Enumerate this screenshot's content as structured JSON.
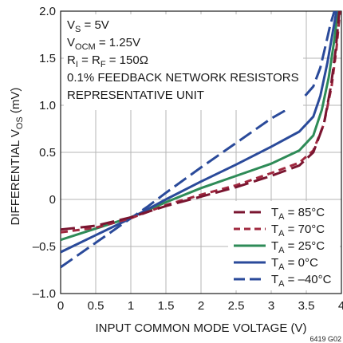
{
  "chart_data": {
    "type": "line",
    "xlabel": "INPUT COMMON MODE VOLTAGE (V)",
    "ylabel_main": "DIFFERENTIAL V",
    "ylabel_sub": "OS",
    "ylabel_unit": " (mV)",
    "xlim": [
      0,
      4
    ],
    "ylim": [
      -1.0,
      2.0
    ],
    "x_ticks": [
      0,
      0.5,
      1,
      1.5,
      2,
      2.5,
      3,
      3.5,
      4
    ],
    "x_tick_labels": [
      "0",
      "0.5",
      "1",
      "1.5",
      "2",
      "2.5",
      "3",
      "3.5",
      "4"
    ],
    "y_ticks": [
      -1.0,
      -0.5,
      0,
      0.5,
      1.0,
      1.5,
      2.0
    ],
    "y_tick_labels": [
      "–1.0",
      "–0.5",
      "0",
      "0.5",
      "1.0",
      "1.5",
      "2.0"
    ],
    "grid": true,
    "legend_position": "bottom-right",
    "annotations": [
      {
        "main": "V",
        "sub": "S",
        "rest": " = 5V"
      },
      {
        "main": "V",
        "sub": "OCM",
        "rest": " = 1.25V"
      },
      {
        "main": "R",
        "sub": "I",
        "rest": " = R",
        "sub2": "F",
        "rest2": " = 150Ω"
      },
      {
        "main": "0.1% FEEDBACK NETWORK RESISTORS"
      },
      {
        "main": "REPRESENTATIVE UNIT"
      }
    ],
    "figure_id": "6419 G02",
    "series": [
      {
        "name_main": "T",
        "name_sub": "A",
        "name_rest": " = 85°C",
        "color": "#7a1530",
        "dash": "long-dash",
        "x": [
          0,
          0.5,
          1.0,
          1.25,
          1.5,
          2.0,
          2.5,
          3.0,
          3.4,
          3.6,
          3.75,
          3.85,
          3.92,
          3.97
        ],
        "y": [
          -0.32,
          -0.28,
          -0.19,
          -0.13,
          -0.07,
          0.03,
          0.13,
          0.25,
          0.36,
          0.5,
          0.8,
          1.2,
          1.6,
          2.0
        ]
      },
      {
        "name_main": "T",
        "name_sub": "A",
        "name_rest": " = 70°C",
        "color": "#a0283f",
        "dash": "short-dash",
        "x": [
          0,
          0.5,
          1.0,
          1.25,
          1.5,
          2.0,
          2.5,
          3.0,
          3.4,
          3.6,
          3.75,
          3.86,
          3.93,
          3.98
        ],
        "y": [
          -0.35,
          -0.3,
          -0.2,
          -0.13,
          -0.06,
          0.05,
          0.15,
          0.28,
          0.39,
          0.52,
          0.8,
          1.2,
          1.6,
          2.0
        ]
      },
      {
        "name_main": "T",
        "name_sub": "A",
        "name_rest": " = 25°C",
        "color": "#2e8b57",
        "dash": "solid",
        "x": [
          0,
          0.5,
          1.0,
          1.25,
          1.5,
          2.0,
          2.5,
          3.0,
          3.4,
          3.6,
          3.72,
          3.82,
          3.9,
          3.95
        ],
        "y": [
          -0.43,
          -0.31,
          -0.19,
          -0.11,
          -0.03,
          0.12,
          0.25,
          0.38,
          0.52,
          0.68,
          0.95,
          1.3,
          1.7,
          2.0
        ]
      },
      {
        "name_main": "T",
        "name_sub": "A",
        "name_rest": " = 0°C",
        "color": "#2a4a9a",
        "dash": "solid",
        "x": [
          0,
          0.5,
          1.0,
          1.25,
          1.5,
          2.0,
          2.5,
          3.0,
          3.4,
          3.6,
          3.7,
          3.8,
          3.87,
          3.93
        ],
        "y": [
          -0.56,
          -0.38,
          -0.2,
          -0.1,
          0.0,
          0.19,
          0.37,
          0.56,
          0.72,
          0.88,
          1.1,
          1.45,
          1.75,
          2.0
        ]
      },
      {
        "name_main": "T",
        "name_sub": "A",
        "name_rest": " = –40°C",
        "color": "#2a4a9a",
        "dash": "long-dash",
        "x": [
          0,
          0.5,
          1.0,
          1.25,
          1.5,
          2.0,
          2.5,
          3.0,
          3.4,
          3.6,
          3.7,
          3.78,
          3.84,
          3.9
        ],
        "y": [
          -0.72,
          -0.46,
          -0.2,
          -0.07,
          0.07,
          0.34,
          0.6,
          0.86,
          1.03,
          1.2,
          1.4,
          1.65,
          1.85,
          2.0
        ]
      }
    ]
  }
}
